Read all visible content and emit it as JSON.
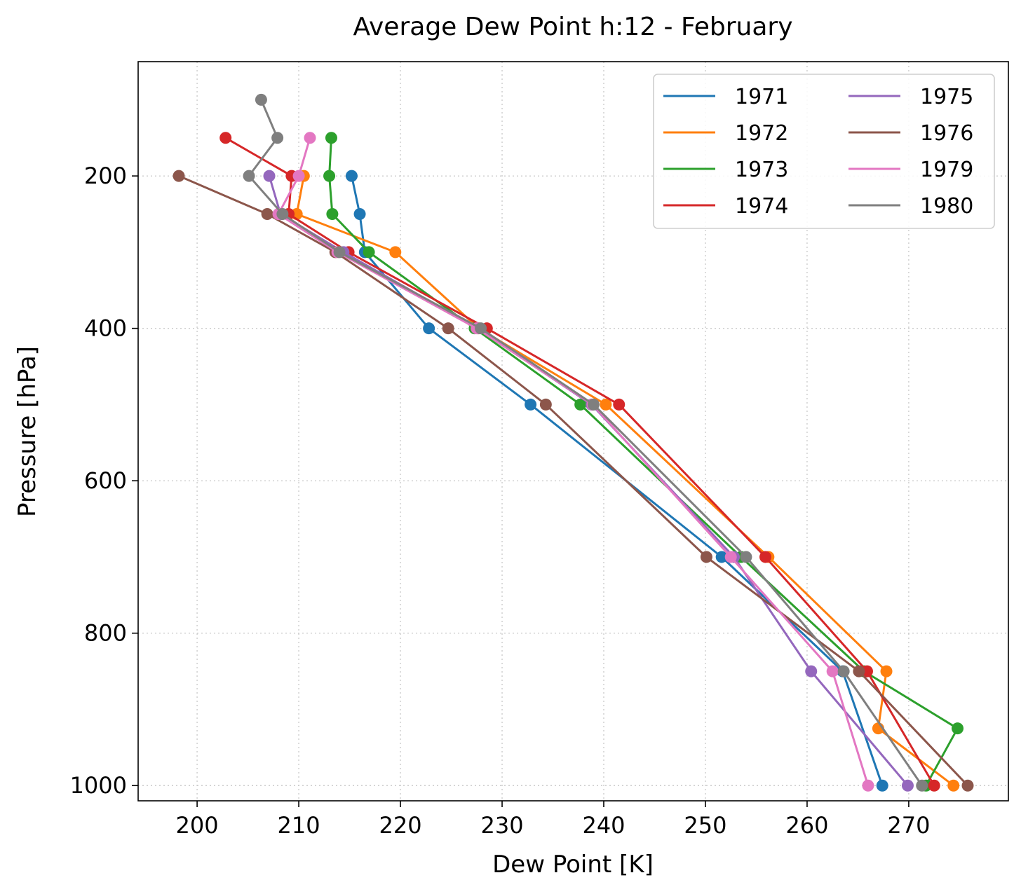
{
  "chart_data": {
    "type": "line",
    "title": "Average Dew Point h:12 - February",
    "xlabel": "Dew Point [K]",
    "ylabel": "Pressure [hPa]",
    "xlim": [
      194.2,
      279.8
    ],
    "ylim": [
      1020,
      50
    ],
    "y_inverted": true,
    "grid": true,
    "legend": "top-right",
    "legend_columns": 2,
    "x_ticks": [
      200,
      210,
      220,
      230,
      240,
      250,
      260,
      270
    ],
    "x_tick_labels": [
      "200",
      "210",
      "220",
      "230",
      "240",
      "250",
      "260",
      "270"
    ],
    "y_ticks": [
      200,
      400,
      600,
      800,
      1000
    ],
    "y_tick_labels": [
      "200",
      "400",
      "600",
      "800",
      "1000"
    ],
    "marker": "circle",
    "series": [
      {
        "name": "1971",
        "color": "#1f77b4",
        "points": [
          [
            215.2,
            200
          ],
          [
            216.0,
            250
          ],
          [
            216.5,
            300
          ],
          [
            222.8,
            400
          ],
          [
            232.8,
            500
          ],
          [
            251.6,
            700
          ],
          [
            263.5,
            850
          ],
          [
            267.4,
            1000
          ]
        ]
      },
      {
        "name": "1972",
        "color": "#ff7f0e",
        "points": [
          [
            210.5,
            200
          ],
          [
            209.8,
            250
          ],
          [
            219.5,
            300
          ],
          [
            227.7,
            400
          ],
          [
            240.2,
            500
          ],
          [
            256.2,
            700
          ],
          [
            267.8,
            850
          ],
          [
            267.0,
            925
          ],
          [
            274.4,
            1000
          ]
        ]
      },
      {
        "name": "1973",
        "color": "#2ca02c",
        "points": [
          [
            213.2,
            150
          ],
          [
            213.0,
            200
          ],
          [
            213.3,
            250
          ],
          [
            216.9,
            300
          ],
          [
            227.3,
            400
          ],
          [
            237.7,
            500
          ],
          [
            253.5,
            700
          ],
          [
            265.6,
            850
          ],
          [
            274.8,
            925
          ],
          [
            271.7,
            1000
          ]
        ]
      },
      {
        "name": "1974",
        "color": "#d62728",
        "points": [
          [
            202.8,
            150
          ],
          [
            209.3,
            200
          ],
          [
            209.0,
            250
          ],
          [
            214.9,
            300
          ],
          [
            228.5,
            400
          ],
          [
            241.5,
            500
          ],
          [
            255.9,
            700
          ],
          [
            265.9,
            850
          ],
          [
            272.5,
            1000
          ]
        ]
      },
      {
        "name": "1975",
        "color": "#9467bd",
        "points": [
          [
            207.1,
            200
          ],
          [
            208.2,
            250
          ],
          [
            214.4,
            300
          ],
          [
            227.6,
            400
          ],
          [
            238.8,
            500
          ],
          [
            252.8,
            700
          ],
          [
            260.4,
            850
          ],
          [
            269.9,
            1000
          ]
        ]
      },
      {
        "name": "1976",
        "color": "#8c564b",
        "points": [
          [
            198.2,
            200
          ],
          [
            206.9,
            250
          ],
          [
            213.6,
            300
          ],
          [
            224.7,
            400
          ],
          [
            234.3,
            500
          ],
          [
            250.1,
            700
          ],
          [
            265.1,
            850
          ],
          [
            275.8,
            1000
          ]
        ]
      },
      {
        "name": "1979",
        "color": "#e377c2",
        "points": [
          [
            211.1,
            150
          ],
          [
            210.0,
            200
          ],
          [
            208.0,
            250
          ],
          [
            213.8,
            300
          ],
          [
            227.5,
            400
          ],
          [
            238.9,
            500
          ],
          [
            252.5,
            700
          ],
          [
            262.5,
            850
          ],
          [
            266.0,
            1000
          ]
        ]
      },
      {
        "name": "1980",
        "color": "#7f7f7f",
        "points": [
          [
            206.3,
            100
          ],
          [
            207.9,
            150
          ],
          [
            205.1,
            200
          ],
          [
            208.4,
            250
          ],
          [
            214.0,
            300
          ],
          [
            227.9,
            400
          ],
          [
            239.0,
            500
          ],
          [
            254.0,
            700
          ],
          [
            263.6,
            850
          ],
          [
            271.3,
            1000
          ]
        ]
      }
    ]
  }
}
